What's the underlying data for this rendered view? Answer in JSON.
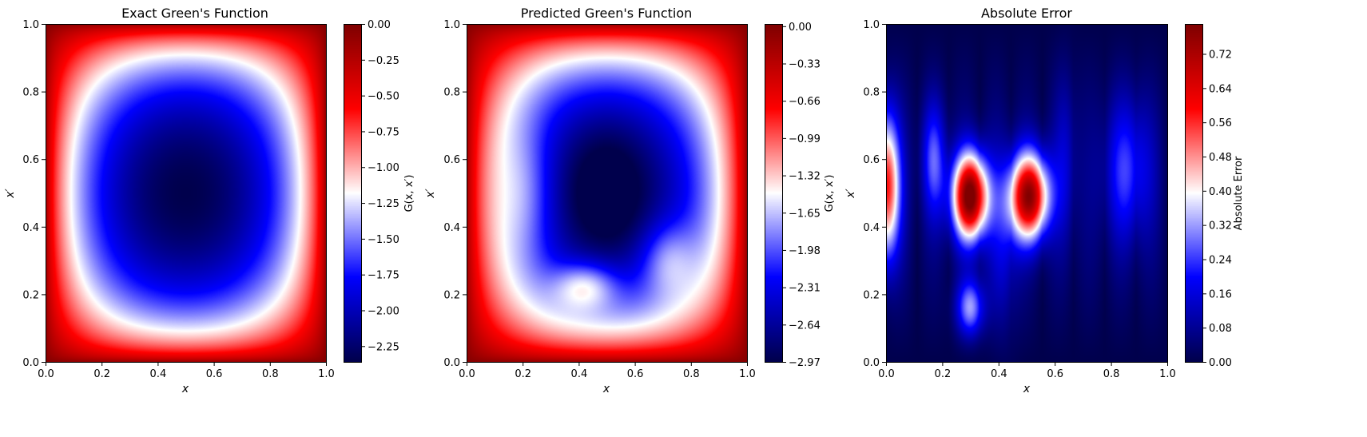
{
  "chart_data": [
    {
      "type": "heatmap",
      "title": "Exact Green's Function",
      "xlabel": "x",
      "ylabel": "x′",
      "xlim": [
        0,
        1
      ],
      "ylim": [
        0,
        1
      ],
      "xticks": [
        "0.0",
        "0.2",
        "0.4",
        "0.6",
        "0.8",
        "1.0"
      ],
      "yticks": [
        "0.0",
        "0.2",
        "0.4",
        "0.6",
        "0.8",
        "1.0"
      ],
      "colormap": "seismic",
      "colorbar": {
        "label": "G(x, x′)",
        "range": [
          -2.36,
          0.0
        ],
        "ticks": [
          "0.00",
          "−0.25",
          "−0.50",
          "−0.75",
          "−1.00",
          "−1.25",
          "−1.50",
          "−1.75",
          "−2.00",
          "−2.25"
        ],
        "tick_values": [
          0.0,
          -0.25,
          -0.5,
          -0.75,
          -1.0,
          -1.25,
          -1.5,
          -1.75,
          -2.0,
          -2.25
        ]
      },
      "extremes": {
        "min": -2.36,
        "min_at": [
          0.5,
          0.5
        ],
        "max": 0.0
      }
    },
    {
      "type": "heatmap",
      "title": "Predicted Green's Function",
      "xlabel": "x",
      "ylabel": "x′",
      "xlim": [
        0,
        1
      ],
      "ylim": [
        0,
        1
      ],
      "xticks": [
        "0.0",
        "0.2",
        "0.4",
        "0.6",
        "0.8",
        "1.0"
      ],
      "yticks": [
        "0.0",
        "0.2",
        "0.4",
        "0.6",
        "0.8",
        "1.0"
      ],
      "colormap": "seismic",
      "colorbar": {
        "label": "G(x, x′)",
        "range": [
          -2.97,
          0.02
        ],
        "ticks": [
          "0.00",
          "−0.33",
          "−0.66",
          "−0.99",
          "−1.32",
          "−1.65",
          "−1.98",
          "−2.31",
          "−2.64",
          "−2.97"
        ],
        "tick_values": [
          0.0,
          -0.33,
          -0.66,
          -0.99,
          -1.32,
          -1.65,
          -1.98,
          -2.31,
          -2.64,
          -2.97
        ]
      },
      "extremes": {
        "min": -2.97,
        "min_at": [
          0.5,
          0.52
        ],
        "max": 0.0
      }
    },
    {
      "type": "heatmap",
      "title": "Absolute Error",
      "xlabel": "x",
      "ylabel": "x′",
      "xlim": [
        0,
        1
      ],
      "ylim": [
        0,
        1
      ],
      "xticks": [
        "0.0",
        "0.2",
        "0.4",
        "0.6",
        "0.8",
        "1.0"
      ],
      "yticks": [
        "0.0",
        "0.2",
        "0.4",
        "0.6",
        "0.8",
        "1.0"
      ],
      "colormap": "seismic",
      "colorbar": {
        "label": "Absolute Error",
        "range": [
          0.0,
          0.79
        ],
        "ticks": [
          "0.00",
          "0.08",
          "0.16",
          "0.24",
          "0.32",
          "0.40",
          "0.48",
          "0.56",
          "0.64",
          "0.72"
        ],
        "tick_values": [
          0.0,
          0.08,
          0.16,
          0.24,
          0.32,
          0.4,
          0.48,
          0.56,
          0.64,
          0.72
        ]
      },
      "extremes": {
        "min": 0.0,
        "max": 0.79,
        "max_at": [
          0.3,
          0.5
        ]
      }
    }
  ]
}
